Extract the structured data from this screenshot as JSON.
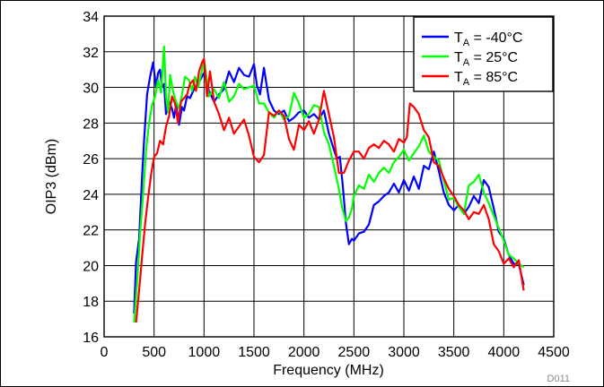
{
  "figure_id": "D011",
  "legend": {
    "entries": [
      {
        "prefix": "T",
        "sub": "A",
        "suffix": " = -40°C",
        "color": "#0000ff"
      },
      {
        "prefix": "T",
        "sub": "A",
        "suffix": " = 25°C",
        "color": "#00ff00"
      },
      {
        "prefix": "T",
        "sub": "A",
        "suffix": " = 85°C",
        "color": "#ff0000"
      }
    ]
  },
  "chart_data": {
    "type": "line",
    "xlabel": "Frequency (MHz)",
    "ylabel": "OIP3 (dBm)",
    "xlim": [
      0,
      4500
    ],
    "ylim": [
      16,
      34
    ],
    "xticks": [
      0,
      500,
      1000,
      1500,
      2000,
      2500,
      3000,
      3500,
      4000,
      4500
    ],
    "yticks": [
      16,
      18,
      20,
      22,
      24,
      26,
      28,
      30,
      32,
      34
    ],
    "grid": true,
    "legend_position": "top-right",
    "series": [
      {
        "name": "TA = -40°C",
        "color": "#0000ff",
        "x": [
          300,
          320,
          350,
          380,
          400,
          430,
          460,
          490,
          520,
          540,
          560,
          580,
          600,
          620,
          650,
          680,
          700,
          720,
          750,
          780,
          800,
          830,
          860,
          900,
          930,
          960,
          1000,
          1050,
          1100,
          1150,
          1200,
          1250,
          1300,
          1350,
          1400,
          1450,
          1500,
          1530,
          1560,
          1600,
          1650,
          1700,
          1750,
          1800,
          1850,
          1900,
          1950,
          2000,
          2050,
          2100,
          2150,
          2200,
          2250,
          2300,
          2330,
          2360,
          2390,
          2420,
          2450,
          2480,
          2500,
          2550,
          2600,
          2650,
          2700,
          2750,
          2800,
          2850,
          2900,
          2950,
          3000,
          3050,
          3100,
          3150,
          3200,
          3250,
          3300,
          3350,
          3400,
          3450,
          3500,
          3550,
          3600,
          3650,
          3700,
          3750,
          3800,
          3850,
          3900,
          3950,
          4000,
          4050,
          4100,
          4150,
          4200
        ],
        "y": [
          17.3,
          20.2,
          21.5,
          25,
          27,
          29.6,
          30.6,
          31.4,
          30,
          30.8,
          31,
          30,
          30.2,
          28.5,
          29.2,
          28.8,
          28.3,
          29,
          27.9,
          28.9,
          28.7,
          29.5,
          29.4,
          29.9,
          30.1,
          30.4,
          30.8,
          29.8,
          29.2,
          29.6,
          29.9,
          30.9,
          30.3,
          31.1,
          30.7,
          30.6,
          31.3,
          30.1,
          29.6,
          31.1,
          29.3,
          28.7,
          28.5,
          28.7,
          28.1,
          28.3,
          28.6,
          28.7,
          28.3,
          28.5,
          28.2,
          28.7,
          27.4,
          26.5,
          26,
          26.1,
          24.4,
          22.4,
          21.2,
          21.5,
          21.4,
          21.8,
          21.9,
          22.3,
          23.4,
          23.6,
          23.9,
          24.1,
          24.6,
          24.1,
          24.8,
          24.2,
          25,
          24.3,
          25.6,
          25.4,
          26.4,
          25.3,
          24.1,
          23.4,
          23.1,
          23.4,
          22.9,
          23.3,
          23.9,
          23.5,
          24.8,
          24.4,
          23.2,
          21.9,
          21.5,
          20.6,
          20.1,
          20.1,
          18.9
        ]
      },
      {
        "name": "TA = 25°C",
        "color": "#00ff00",
        "x": [
          300,
          330,
          360,
          390,
          420,
          450,
          480,
          510,
          540,
          570,
          600,
          620,
          640,
          660,
          690,
          720,
          750,
          780,
          810,
          850,
          880,
          910,
          940,
          970,
          1000,
          1050,
          1100,
          1150,
          1200,
          1250,
          1300,
          1350,
          1400,
          1450,
          1500,
          1550,
          1600,
          1650,
          1700,
          1750,
          1800,
          1850,
          1900,
          1950,
          2000,
          2050,
          2100,
          2150,
          2200,
          2250,
          2300,
          2350,
          2380,
          2420,
          2450,
          2480,
          2500,
          2550,
          2600,
          2650,
          2700,
          2750,
          2800,
          2850,
          2900,
          2950,
          3000,
          3050,
          3100,
          3150,
          3200,
          3250,
          3300,
          3350,
          3400,
          3450,
          3500,
          3550,
          3600,
          3650,
          3700,
          3750,
          3800,
          3850,
          3900,
          3950,
          4000,
          4050,
          4100,
          4150,
          4200
        ],
        "y": [
          16.8,
          19,
          21.8,
          24,
          26.5,
          28,
          29,
          29.5,
          30.4,
          29.7,
          32.3,
          29.5,
          28.6,
          30.7,
          29.8,
          29.2,
          28.8,
          29.6,
          30.6,
          30.4,
          29.8,
          30.6,
          30,
          30.7,
          31.6,
          29.5,
          29.9,
          29.4,
          30.3,
          29.2,
          29.5,
          30.2,
          29.9,
          30,
          30.1,
          29.1,
          29.1,
          28.6,
          28.3,
          28.7,
          28.2,
          28.4,
          29.7,
          29.1,
          28.3,
          28.5,
          29,
          28.9,
          27.5,
          26.8,
          25.6,
          24.3,
          23.3,
          22.5,
          22.7,
          23.2,
          23.9,
          24.5,
          24.3,
          25.1,
          24.7,
          25.2,
          25.5,
          25.2,
          25.8,
          26.1,
          26.5,
          25.9,
          26.3,
          26.7,
          27.3,
          26.4,
          26.1,
          25.9,
          24.8,
          23.7,
          23.8,
          23.3,
          22.9,
          24.5,
          24.7,
          25.1,
          24.1,
          23.5,
          22.8,
          22.1,
          21.4,
          20.6,
          20.4,
          20.1,
          19.9
        ]
      },
      {
        "name": "TA = 85°C",
        "color": "#ff0000",
        "x": [
          320,
          350,
          380,
          410,
          440,
          470,
          500,
          530,
          560,
          590,
          620,
          650,
          680,
          710,
          740,
          770,
          800,
          830,
          860,
          890,
          920,
          950,
          980,
          1000,
          1030,
          1060,
          1100,
          1150,
          1200,
          1250,
          1300,
          1350,
          1400,
          1450,
          1500,
          1550,
          1600,
          1650,
          1700,
          1750,
          1800,
          1850,
          1900,
          1950,
          2000,
          2050,
          2100,
          2150,
          2200,
          2250,
          2300,
          2350,
          2400,
          2450,
          2500,
          2550,
          2600,
          2650,
          2700,
          2750,
          2800,
          2850,
          2900,
          2950,
          3000,
          3030,
          3060,
          3100,
          3150,
          3200,
          3250,
          3300,
          3350,
          3400,
          3450,
          3500,
          3550,
          3600,
          3650,
          3700,
          3750,
          3800,
          3850,
          3900,
          3950,
          4000,
          4050,
          4100,
          4150,
          4200
        ],
        "y": [
          16.8,
          18.6,
          20.5,
          22.3,
          23.8,
          25.1,
          26.1,
          26.3,
          27,
          26.8,
          27.8,
          28.4,
          29.5,
          29.1,
          28,
          29.2,
          29.4,
          29.6,
          30.2,
          30.4,
          29.8,
          30.9,
          31.4,
          31.6,
          29.5,
          30.9,
          29.2,
          28.5,
          27.6,
          28.3,
          27.4,
          27.8,
          28.2,
          27.3,
          26.1,
          25.8,
          26.2,
          28.6,
          28.4,
          28.7,
          28.4,
          27.1,
          26.5,
          27.9,
          27.6,
          28.1,
          27.4,
          28.2,
          29.8,
          28.5,
          27.2,
          25.2,
          25.2,
          25.9,
          26.4,
          26.4,
          26,
          26.6,
          26.8,
          26.6,
          27,
          26.8,
          26.4,
          27.1,
          26.9,
          27.2,
          29.1,
          28.9,
          28.5,
          27.6,
          27.2,
          25.8,
          25.6,
          24.9,
          24.3,
          23.9,
          23.4,
          23.1,
          22.6,
          23,
          22.9,
          23.4,
          22.6,
          21.2,
          20.8,
          20.1,
          20.4,
          19.9,
          20.3,
          18.6
        ]
      }
    ]
  }
}
